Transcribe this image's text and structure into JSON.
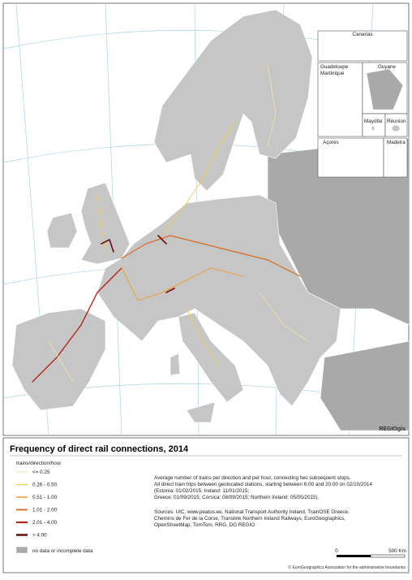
{
  "map": {
    "insets": [
      "Canarias",
      "Guadeloupe",
      "Martinique",
      "Guyane",
      "Mayotte",
      "Réunion",
      "Açores",
      "Madeira"
    ],
    "logo": "REGIOgis"
  },
  "legend": {
    "title": "Frequency of direct rail connections, 2014",
    "unit": "trains/direction/hour",
    "items": [
      "<= 0.25",
      "0.26 - 0.50",
      "0.51 - 1.00",
      "1.01 - 2.00",
      "2.01 - 4.00",
      "> 4.00"
    ],
    "colors": [
      "#f3e3a2",
      "#f1cc4c",
      "#efa235",
      "#dc6a22",
      "#b3281a",
      "#6e0c0c"
    ],
    "nodata": "no data or incomplete data"
  },
  "notes": [
    "Average number of trains per direction and per hour, connecting two subsequent stops.",
    "All direct train trips between geolocated stations, starting between 6:00 and 20:00 on 02/10/2014",
    "(Estonia: 01/02/2015; Ireland: 11/01/2015;",
    "Greece: 01/09/2015; Corsica: 08/09/2015; Northern Ireland: 05/05/2015)."
  ],
  "sources": [
    "Sources: UIC, www.peatus.ee, National Transport Authority Ireland, TrainOSE Greece,",
    "Chemins de Fer de la Corse, Translink Northern Ireland Railways, EuroGeographics,",
    "OpenStreetMap, TomTom, RRG, DG REGIO"
  ],
  "scale": [
    "0",
    "500 Km"
  ],
  "copyright": "© EuroGeographics Association for the administrative boundaries"
}
